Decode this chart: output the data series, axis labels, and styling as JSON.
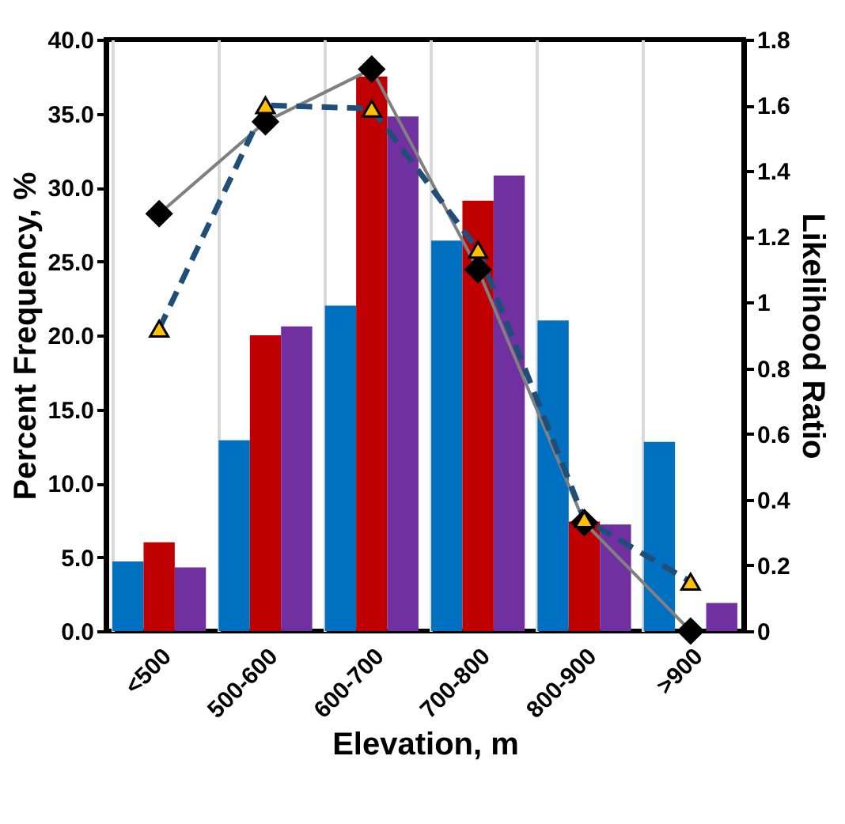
{
  "chart_data": {
    "type": "bar",
    "xlabel": "Elevation, m",
    "ylabel": "Percent Frequency, %",
    "y2label": "Likelihood Ratio",
    "categories": [
      "<500",
      "500-600",
      "600-700",
      "700-800",
      "800-900",
      ">900"
    ],
    "series": [
      {
        "color": "#0070c0",
        "values": [
          4.7,
          12.9,
          22.0,
          26.4,
          21.0,
          12.8
        ]
      },
      {
        "color": "#c00000",
        "values": [
          6.0,
          20.0,
          37.5,
          29.1,
          7.4,
          0
        ]
      },
      {
        "color": "#7030a0",
        "values": [
          4.3,
          20.6,
          34.8,
          30.8,
          7.2,
          1.9
        ]
      },
      {
        "type": "line",
        "axis": "y2",
        "color": "#000000",
        "marker": "diamond",
        "line_style": "solid",
        "values": [
          1.27,
          1.55,
          1.71,
          1.1,
          0.33,
          0
        ]
      },
      {
        "type": "line",
        "axis": "y2",
        "color": "#ffc000",
        "marker": "triangle",
        "line_style": "dashed",
        "values": [
          0.92,
          1.6,
          1.59,
          1.16,
          0.34,
          0.15
        ]
      }
    ],
    "ylim": [
      0,
      40
    ],
    "yticks": [
      {
        "value": 0,
        "label": "0.0"
      },
      {
        "value": 5,
        "label": "5.0"
      },
      {
        "value": 10,
        "label": "10.0"
      },
      {
        "value": 15,
        "label": "15.0"
      },
      {
        "value": 20,
        "label": "20.0"
      },
      {
        "value": 25,
        "label": "25.0"
      },
      {
        "value": 30,
        "label": "30.0"
      },
      {
        "value": 35,
        "label": "35.0"
      },
      {
        "value": 40,
        "label": "40.0"
      }
    ],
    "y2lim": [
      0,
      1.8
    ],
    "y2ticks": [
      0,
      0.2,
      0.4,
      0.6,
      0.8,
      1,
      1.2,
      1.4,
      1.6,
      1.8
    ],
    "grid": "x"
  }
}
